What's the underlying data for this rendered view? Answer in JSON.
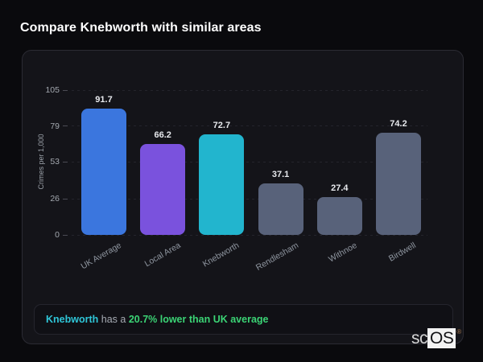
{
  "page": {
    "title": "Compare Knebworth with similar areas"
  },
  "chart_data": {
    "type": "bar",
    "title": "Compare Knebworth with similar areas",
    "categories": [
      "UK Average",
      "Local Area",
      "Knebworth",
      "Rendlesham",
      "Withnoe",
      "Birdwell"
    ],
    "values": [
      91.7,
      66.2,
      72.7,
      37.1,
      27.4,
      74.2
    ],
    "bar_colors": [
      "#3b76de",
      "#7a52dd",
      "#22b5ce",
      "#58627a",
      "#58627a",
      "#58627a"
    ],
    "ylabel": "Crimes per 1,000",
    "xlabel": "",
    "yticks": [
      105,
      79,
      53,
      26,
      0
    ],
    "ylim": [
      0,
      105
    ],
    "grid": "dashed-horizontal",
    "legend": "none"
  },
  "summary": {
    "area": "Knebworth",
    "connector": " has a ",
    "highlight": "20.7% lower than UK average",
    "area_color": "#2fc6d8",
    "highlight_color": "#3bd375"
  },
  "branding": {
    "prefix": "sc",
    "suffix": "OS",
    "registered": "®"
  }
}
